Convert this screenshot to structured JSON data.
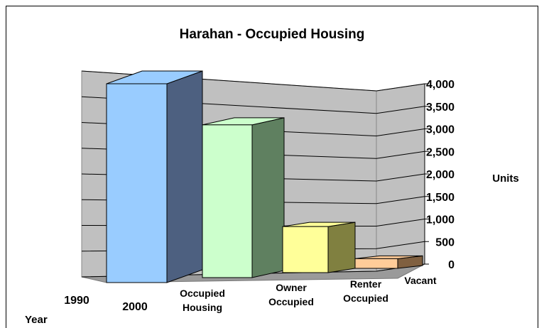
{
  "chart_data": {
    "type": "bar3d",
    "title": "Harahan - Occupied Housing",
    "categories": [
      "Occupied Housing",
      "Owner Occupied",
      "Renter Occupied",
      "Vacant"
    ],
    "depth_labels": [
      "1990",
      "2000"
    ],
    "depth_axis_label": "Year",
    "y_axis_label": "Units",
    "series": [
      {
        "name": "2000",
        "colors": [
          "#99ccff",
          "#ccffcc",
          "#ffff99",
          "#ffcc99"
        ],
        "side_colors": [
          "#4d6080",
          "#5f8060",
          "#808040",
          "#806040"
        ],
        "values": [
          4100,
          3150,
          950,
          200
        ]
      }
    ],
    "ylim": [
      0,
      4000
    ],
    "yticks": [
      {
        "value": 0,
        "label": "0"
      },
      {
        "value": 500,
        "label": "500"
      },
      {
        "value": 1000,
        "label": "1,000"
      },
      {
        "value": 1500,
        "label": "1,500"
      },
      {
        "value": 2000,
        "label": "2,000"
      },
      {
        "value": 2500,
        "label": "2,500"
      },
      {
        "value": 3000,
        "label": "3,000"
      },
      {
        "value": 3500,
        "label": "3,500"
      },
      {
        "value": 4000,
        "label": "4,000"
      }
    ],
    "grid": true
  }
}
